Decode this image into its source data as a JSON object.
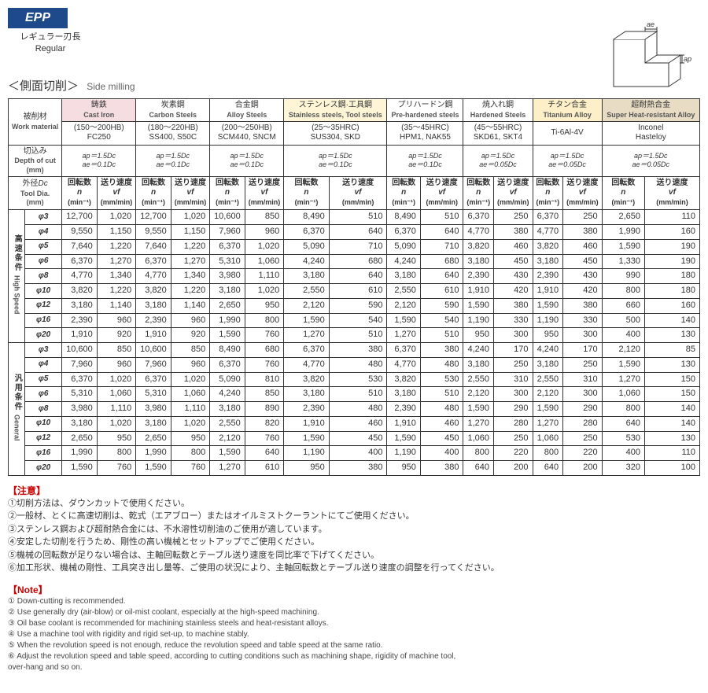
{
  "badge": {
    "code": "EPP",
    "jp": "レギュラー刃長",
    "en": "Regular"
  },
  "diagram": {
    "ap_label": "ap",
    "ae_label": "ae"
  },
  "section": {
    "jp": "＜側面切削＞",
    "en": "Side milling"
  },
  "header": {
    "workmat_jp": "被削材",
    "workmat_en": "Work material",
    "doc_jp": "切込み",
    "doc_en": "Depth of cut",
    "doc_unit": "(mm)",
    "dia_jp": "外径",
    "dia_sym": "Dc",
    "dia_en": "Tool Dia.",
    "dia_unit": "(mm)",
    "n_jp": "回転数",
    "n_sym": "n",
    "n_unit": "(min⁻¹)",
    "vf_jp": "送り速度",
    "vf_sym": "vf",
    "vf_unit": "(mm/min)"
  },
  "materials": [
    {
      "jp": "鋳鉄",
      "en": "Cast Iron",
      "spec1": "(150～200HB)",
      "spec2": "FC250",
      "ap": "ap＝1.5Dc",
      "ae": "ae＝0.1Dc",
      "cls": "mat-castiron"
    },
    {
      "jp": "炭素鋼",
      "en": "Carbon Steels",
      "spec1": "(180～220HB)",
      "spec2": "SS400, S50C",
      "ap": "ap＝1.5Dc",
      "ae": "ae＝0.1Dc",
      "cls": "mat-carbon"
    },
    {
      "jp": "合金鋼",
      "en": "Alloy Steels",
      "spec1": "(200～250HB)",
      "spec2": "SCM440, SNCM",
      "ap": "ap＝1.5Dc",
      "ae": "ae＝0.1Dc",
      "cls": "mat-alloy"
    },
    {
      "jp": "ステンレス鋼·工具鋼",
      "en": "Stainless steels, Tool steels",
      "spec1": "(25～35HRC)",
      "spec2": "SUS304, SKD",
      "ap": "ap＝1.5Dc",
      "ae": "ae＝0.1Dc",
      "cls": "mat-stainless"
    },
    {
      "jp": "プリハードン鋼",
      "en": "Pre-hardened steels",
      "spec1": "(35～45HRC)",
      "spec2": "HPM1, NAK55",
      "ap": "ap＝1.5Dc",
      "ae": "ae＝0.1Dc",
      "cls": "mat-prehard"
    },
    {
      "jp": "焼入れ鋼",
      "en": "Hardened Steels",
      "spec1": "(45～55HRC)",
      "spec2": "SKD61, SKT4",
      "ap": "ap＝1.5Dc",
      "ae": "ae＝0.05Dc",
      "cls": "mat-hardened"
    },
    {
      "jp": "チタン合金",
      "en": "Titanium Alloy",
      "spec1": "Ti-6Al-4V",
      "spec2": "",
      "ap": "ap＝1.5Dc",
      "ae＝": "",
      "ae": "ae＝0.05Dc",
      "cls": "mat-ti"
    },
    {
      "jp": "超耐熱合金",
      "en": "Super Heat-resistant Alloy",
      "spec1": "Inconel",
      "spec2": "Hasteloy",
      "ap": "ap＝1.5Dc",
      "ae": "ae＝0.05Dc",
      "cls": "mat-super"
    }
  ],
  "groups": [
    {
      "jp": "高速条件",
      "en": "High Speed",
      "rows": [
        {
          "dia": "φ3",
          "v": [
            "12,700",
            "1,020",
            "12,700",
            "1,020",
            "10,600",
            "850",
            "8,490",
            "510",
            "8,490",
            "510",
            "6,370",
            "250",
            "6,370",
            "250",
            "2,650",
            "110"
          ]
        },
        {
          "dia": "φ4",
          "v": [
            "9,550",
            "1,150",
            "9,550",
            "1,150",
            "7,960",
            "960",
            "6,370",
            "640",
            "6,370",
            "640",
            "4,770",
            "380",
            "4,770",
            "380",
            "1,990",
            "160"
          ]
        },
        {
          "dia": "φ5",
          "v": [
            "7,640",
            "1,220",
            "7,640",
            "1,220",
            "6,370",
            "1,020",
            "5,090",
            "710",
            "5,090",
            "710",
            "3,820",
            "460",
            "3,820",
            "460",
            "1,590",
            "190"
          ]
        },
        {
          "dia": "φ6",
          "v": [
            "6,370",
            "1,270",
            "6,370",
            "1,270",
            "5,310",
            "1,060",
            "4,240",
            "680",
            "4,240",
            "680",
            "3,180",
            "450",
            "3,180",
            "450",
            "1,330",
            "190"
          ]
        },
        {
          "dia": "φ8",
          "v": [
            "4,770",
            "1,340",
            "4,770",
            "1,340",
            "3,980",
            "1,110",
            "3,180",
            "640",
            "3,180",
            "640",
            "2,390",
            "430",
            "2,390",
            "430",
            "990",
            "180"
          ]
        },
        {
          "dia": "φ10",
          "v": [
            "3,820",
            "1,220",
            "3,820",
            "1,220",
            "3,180",
            "1,020",
            "2,550",
            "610",
            "2,550",
            "610",
            "1,910",
            "420",
            "1,910",
            "420",
            "800",
            "180"
          ]
        },
        {
          "dia": "φ12",
          "v": [
            "3,180",
            "1,140",
            "3,180",
            "1,140",
            "2,650",
            "950",
            "2,120",
            "590",
            "2,120",
            "590",
            "1,590",
            "380",
            "1,590",
            "380",
            "660",
            "160"
          ]
        },
        {
          "dia": "φ16",
          "v": [
            "2,390",
            "960",
            "2,390",
            "960",
            "1,990",
            "800",
            "1,590",
            "540",
            "1,590",
            "540",
            "1,190",
            "330",
            "1,190",
            "330",
            "500",
            "140"
          ]
        },
        {
          "dia": "φ20",
          "v": [
            "1,910",
            "920",
            "1,910",
            "920",
            "1,590",
            "760",
            "1,270",
            "510",
            "1,270",
            "510",
            "950",
            "300",
            "950",
            "300",
            "400",
            "130"
          ]
        }
      ]
    },
    {
      "jp": "汎用条件",
      "en": "General",
      "rows": [
        {
          "dia": "φ3",
          "v": [
            "10,600",
            "850",
            "10,600",
            "850",
            "8,490",
            "680",
            "6,370",
            "380",
            "6,370",
            "380",
            "4,240",
            "170",
            "4,240",
            "170",
            "2,120",
            "85"
          ]
        },
        {
          "dia": "φ4",
          "v": [
            "7,960",
            "960",
            "7,960",
            "960",
            "6,370",
            "760",
            "4,770",
            "480",
            "4,770",
            "480",
            "3,180",
            "250",
            "3,180",
            "250",
            "1,590",
            "130"
          ]
        },
        {
          "dia": "φ5",
          "v": [
            "6,370",
            "1,020",
            "6,370",
            "1,020",
            "5,090",
            "810",
            "3,820",
            "530",
            "3,820",
            "530",
            "2,550",
            "310",
            "2,550",
            "310",
            "1,270",
            "150"
          ]
        },
        {
          "dia": "φ6",
          "v": [
            "5,310",
            "1,060",
            "5,310",
            "1,060",
            "4,240",
            "850",
            "3,180",
            "510",
            "3,180",
            "510",
            "2,120",
            "300",
            "2,120",
            "300",
            "1,060",
            "150"
          ]
        },
        {
          "dia": "φ8",
          "v": [
            "3,980",
            "1,110",
            "3,980",
            "1,110",
            "3,180",
            "890",
            "2,390",
            "480",
            "2,390",
            "480",
            "1,590",
            "290",
            "1,590",
            "290",
            "800",
            "140"
          ]
        },
        {
          "dia": "φ10",
          "v": [
            "3,180",
            "1,020",
            "3,180",
            "1,020",
            "2,550",
            "820",
            "1,910",
            "460",
            "1,910",
            "460",
            "1,270",
            "280",
            "1,270",
            "280",
            "640",
            "140"
          ]
        },
        {
          "dia": "φ12",
          "v": [
            "2,650",
            "950",
            "2,650",
            "950",
            "2,120",
            "760",
            "1,590",
            "450",
            "1,590",
            "450",
            "1,060",
            "250",
            "1,060",
            "250",
            "530",
            "130"
          ]
        },
        {
          "dia": "φ16",
          "v": [
            "1,990",
            "800",
            "1,990",
            "800",
            "1,590",
            "640",
            "1,190",
            "400",
            "1,190",
            "400",
            "800",
            "220",
            "800",
            "220",
            "400",
            "110"
          ]
        },
        {
          "dia": "φ20",
          "v": [
            "1,590",
            "760",
            "1,590",
            "760",
            "1,270",
            "610",
            "950",
            "380",
            "950",
            "380",
            "640",
            "200",
            "640",
            "200",
            "320",
            "100"
          ]
        }
      ]
    }
  ],
  "notes_jp": {
    "header": "【注意】",
    "lines": [
      "①切削方法は、ダウンカットで使用ください。",
      "②一般材、とくに高速切削は、乾式（エアブロー）またはオイルミストクーラントにてご使用ください。",
      "③ステンレス鋼および超耐熱合金には、不水溶性切削油のご使用が適しています。",
      "④安定した切削を行うため、剛性の高い機械とセットアップでご使用ください。",
      "⑤機械の回転数が足りない場合は、主軸回転数とテーブル送り速度を同比率で下げてください。",
      "⑥加工形状、機械の剛性、工具突き出し量等、ご使用の状況により、主軸回転数とテーブル送り速度の調整を行ってください。"
    ]
  },
  "notes_en": {
    "header": "【Note】",
    "lines": [
      "① Down-cutting is recommended.",
      "② Use generally dry (air-blow) or oil-mist coolant, especially at the high-speed machining.",
      "③ Oil base coolant is recommended for machining stainless steels and heat-resistant alloys.",
      "④ Use a machine tool with rigidity and rigid set-up, to machine stably.",
      "⑤ When the revolution speed is not enough, reduce the revolution speed and table speed at the same ratio.",
      "⑥ Adjust the revolution speed and table speed, according to cutting conditions such as machining shape, rigidity of machine tool,",
      "    over-hang and so on."
    ]
  }
}
